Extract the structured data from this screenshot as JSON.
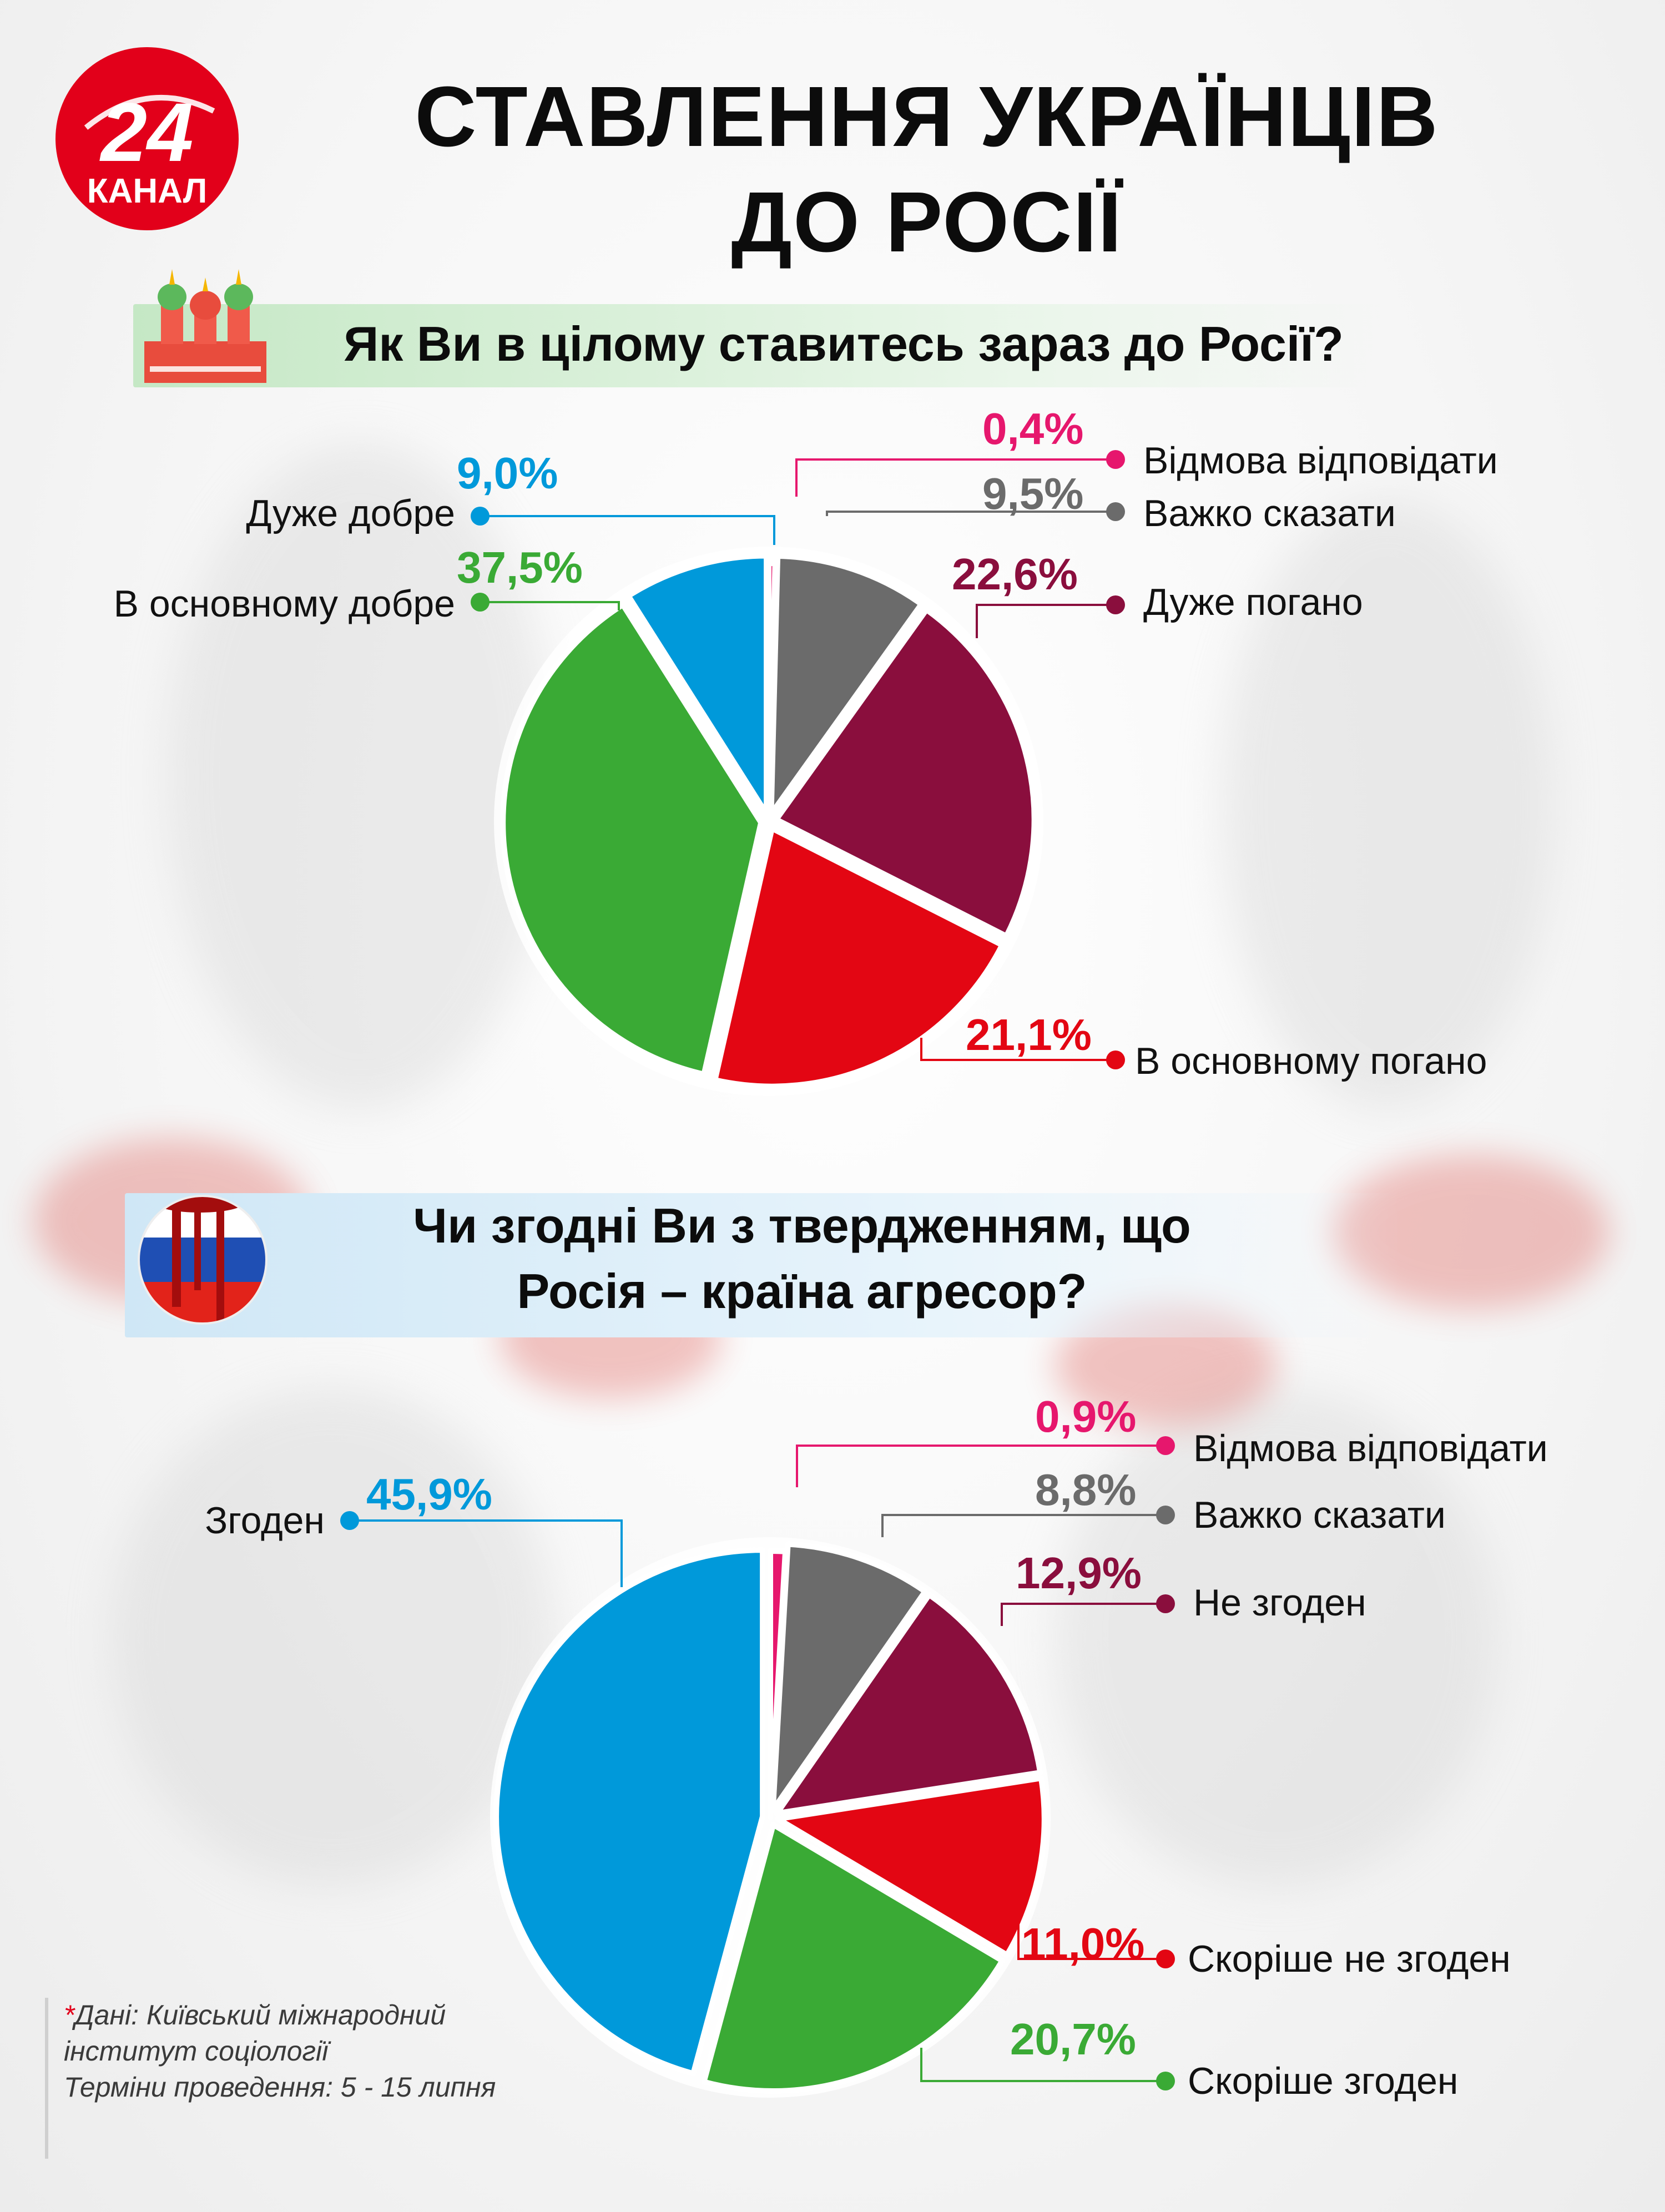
{
  "logo": {
    "number": "24",
    "word": "КАНАЛ"
  },
  "title": {
    "line1": "СТАВЛЕННЯ УКРАЇНЦІВ",
    "line2": "ДО РОСІЇ"
  },
  "question1": {
    "text": "Як Ви в цілому ставитесь зараз до Росії?"
  },
  "question2": {
    "line1": "Чи згодні Ви з твердженням, що",
    "line2": "Росія – країна агресор?"
  },
  "source": {
    "asterisk": "*",
    "line1": "Дані:  Київський міжнародний",
    "line2": "інститут соціології",
    "line3": "Терміни проведення: 5 - 15 липня"
  },
  "chart_data": [
    {
      "type": "pie",
      "title": "Як Ви в цілому ставитесь зараз до Росії?",
      "slices": [
        {
          "name": "Дуже добре",
          "value": 9.0,
          "label_value": "9,0%",
          "color": "#0099da"
        },
        {
          "name": "В основному добре",
          "value": 37.5,
          "label_value": "37,5%",
          "color": "#3aaa35"
        },
        {
          "name": "В основному погано",
          "value": 21.1,
          "label_value": "21,1%",
          "color": "#e30613"
        },
        {
          "name": "Дуже погано",
          "value": 22.6,
          "label_value": "22,6%",
          "color": "#8a0e3d"
        },
        {
          "name": "Важко сказати",
          "value": 9.5,
          "label_value": "9,5%",
          "color": "#6b6b6b"
        },
        {
          "name": "Відмова відповідати",
          "value": 0.4,
          "label_value": "0,4%",
          "color": "#e6176d"
        }
      ]
    },
    {
      "type": "pie",
      "title": "Чи згодні Ви з твердженням, що Росія – країна агресор?",
      "slices": [
        {
          "name": "Згоден",
          "value": 45.9,
          "label_value": "45,9%",
          "color": "#0099da"
        },
        {
          "name": "Скоріше згоден",
          "value": 20.7,
          "label_value": "20,7%",
          "color": "#3aaa35"
        },
        {
          "name": "Скоріше не згоден",
          "value": 11.0,
          "label_value": "11,0%",
          "color": "#e30613"
        },
        {
          "name": "Не згоден",
          "value": 12.9,
          "label_value": "12,9%",
          "color": "#8a0e3d"
        },
        {
          "name": "Важко сказати",
          "value": 8.8,
          "label_value": "8,8%",
          "color": "#6b6b6b"
        },
        {
          "name": "Відмова відповідати",
          "value": 0.9,
          "label_value": "0,9%",
          "color": "#e6176d"
        }
      ]
    }
  ]
}
